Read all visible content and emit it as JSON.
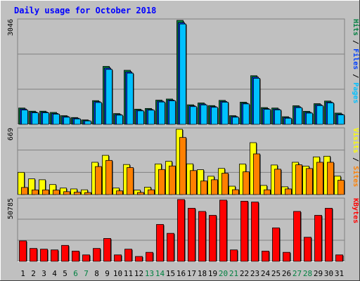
{
  "chart_data": {
    "type": "bar",
    "title": "Daily usage for October 2018",
    "grid": true,
    "colors": {
      "background": "#c0c0c0",
      "plot": "#c0c0c0",
      "title": "#0000ff",
      "hits": "#008040",
      "files": "#0040ff",
      "pages": "#00c0ff",
      "visits": "#ff8000",
      "sites": "#ffff00",
      "kbytes": "#ff0000",
      "weekend_label": "#008040",
      "weekday_label": "#000000"
    },
    "days": [
      {
        "label": "1",
        "weekend": false
      },
      {
        "label": "2",
        "weekend": false
      },
      {
        "label": "3",
        "weekend": false
      },
      {
        "label": "4",
        "weekend": false
      },
      {
        "label": "5",
        "weekend": false
      },
      {
        "label": "6",
        "weekend": true
      },
      {
        "label": "7",
        "weekend": true
      },
      {
        "label": "8",
        "weekend": false
      },
      {
        "label": "9",
        "weekend": false
      },
      {
        "label": "10",
        "weekend": false
      },
      {
        "label": "11",
        "weekend": false
      },
      {
        "label": "12",
        "weekend": false
      },
      {
        "label": "13",
        "weekend": true
      },
      {
        "label": "14",
        "weekend": true
      },
      {
        "label": "15",
        "weekend": false
      },
      {
        "label": "16",
        "weekend": false
      },
      {
        "label": "17",
        "weekend": false
      },
      {
        "label": "18",
        "weekend": false
      },
      {
        "label": "19",
        "weekend": false
      },
      {
        "label": "20",
        "weekend": true
      },
      {
        "label": "21",
        "weekend": true
      },
      {
        "label": "22",
        "weekend": false
      },
      {
        "label": "23",
        "weekend": false
      },
      {
        "label": "24",
        "weekend": false
      },
      {
        "label": "25",
        "weekend": false
      },
      {
        "label": "26",
        "weekend": false
      },
      {
        "label": "27",
        "weekend": true
      },
      {
        "label": "28",
        "weekend": true
      },
      {
        "label": "29",
        "weekend": false
      },
      {
        "label": "30",
        "weekend": false
      },
      {
        "label": "31",
        "weekend": false
      }
    ],
    "panels": [
      {
        "id": "hits",
        "ymax": 3046,
        "ymax_label": "3046",
        "legend": [
          {
            "text": "Pages",
            "color": "#00c0ff"
          },
          {
            "text": " / ",
            "color": "#000000"
          },
          {
            "text": "Files",
            "color": "#0040ff"
          },
          {
            "text": " / ",
            "color": "#000000"
          },
          {
            "text": "Hits",
            "color": "#008040"
          }
        ],
        "series": [
          {
            "name": "Hits",
            "color": "#008040",
            "values": [
              478,
              386,
              386,
              350,
              254,
              200,
              130,
              695,
              1698,
              316,
              1584,
              445,
              466,
              709,
              742,
              3046,
              573,
              626,
              550,
              702,
              254,
              650,
              1425,
              491,
              478,
              224,
              545,
              382,
              606,
              683,
              330
            ]
          },
          {
            "name": "Files",
            "color": "#0040ff",
            "values": [
              450,
              360,
              360,
              320,
              230,
              180,
              110,
              665,
              1648,
              290,
              1534,
              415,
              436,
              679,
              712,
              2980,
              543,
              596,
              520,
              672,
              230,
              620,
              1385,
              461,
              448,
              200,
              515,
              352,
              576,
              653,
              300
            ]
          },
          {
            "name": "Pages",
            "color": "#00c0ff",
            "values": [
              420,
              340,
              340,
              300,
              210,
              160,
              100,
              640,
              1610,
              270,
              1500,
              395,
              416,
              655,
              690,
              2940,
              520,
              570,
              500,
              650,
              210,
              600,
              1350,
              440,
              425,
              180,
              490,
              330,
              550,
              630,
              280
            ]
          }
        ]
      },
      {
        "id": "visits",
        "ymax": 669,
        "ymax_label": "669",
        "legend": [
          {
            "text": "Sites",
            "color": "#ff8000"
          },
          {
            "text": " / ",
            "color": "#000000"
          },
          {
            "text": "Visits",
            "color": "#ffff00"
          }
        ],
        "series": [
          {
            "name": "Visits",
            "color": "#ffff00",
            "values": [
              228,
              161,
              152,
              103,
              67,
              58,
              49,
              331,
              402,
              67,
              308,
              46,
              76,
              314,
              341,
              669,
              315,
              255,
              188,
              268,
              86,
              313,
              532,
              94,
              303,
              80,
              331,
              291,
              386,
              393,
              189
            ]
          },
          {
            "name": "Sites",
            "color": "#ff8000",
            "values": [
              73,
              48,
              48,
              46,
              30,
              25,
              21,
              287,
              350,
              38,
              277,
              22,
              49,
              257,
              293,
              585,
              246,
              139,
              152,
              219,
              50,
              233,
              417,
              49,
              260,
              58,
              305,
              267,
              331,
              331,
              147
            ]
          }
        ]
      },
      {
        "id": "kbytes",
        "ymax": 50785,
        "ymax_label": "50785",
        "legend": [
          {
            "text": "KBytes",
            "color": "#ff0000"
          }
        ],
        "series": [
          {
            "name": "KBytes",
            "color": "#ff0000",
            "values": [
              16800,
              10600,
              10000,
              9400,
              13100,
              8400,
              5300,
              10600,
              18800,
              5300,
              10000,
              4000,
              7400,
              30300,
              23000,
              50785,
              43600,
              41000,
              37800,
              50300,
              9400,
              49400,
              48700,
              8400,
              27500,
              7400,
              41000,
              19800,
              37800,
              43600,
              5300
            ]
          }
        ]
      }
    ]
  }
}
